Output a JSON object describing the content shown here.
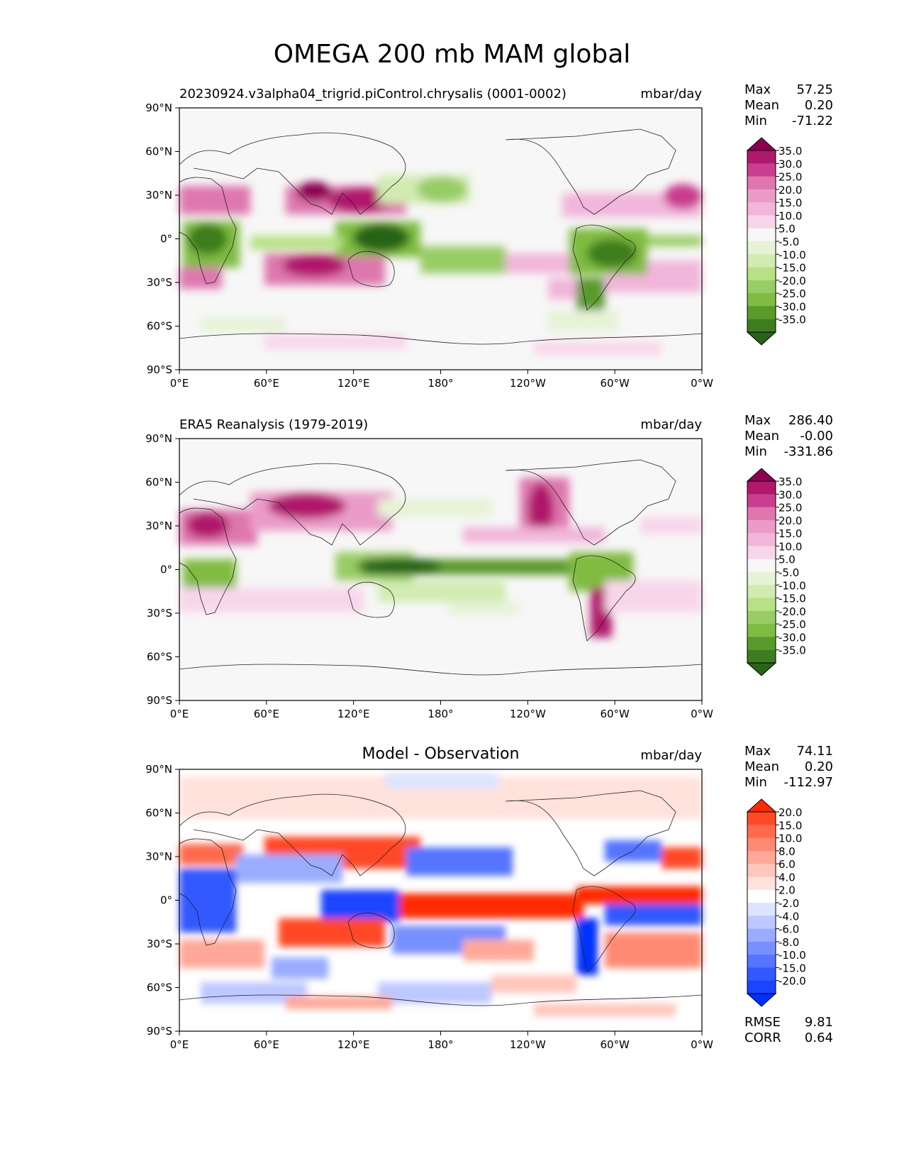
{
  "title": "OMEGA 200 mb MAM global",
  "lon_ticks": [
    "0°E",
    "60°E",
    "120°E",
    "180°",
    "120°W",
    "60°W",
    "0°W"
  ],
  "lat_ticks": [
    "90°N",
    "60°N",
    "30°N",
    "0°",
    "30°S",
    "60°S",
    "90°S"
  ],
  "panels": [
    {
      "title": "20230924.v3alpha04_trigrid.piControl.chrysalis (0001-0002)",
      "units": "mbar/day",
      "stats": [
        {
          "label": "Max",
          "value": "57.25"
        },
        {
          "label": "Mean",
          "value": "0.20"
        },
        {
          "label": "Min",
          "value": "-71.22"
        }
      ],
      "colorbar": {
        "levels": [
          "35.0",
          "30.0",
          "25.0",
          "20.0",
          "15.0",
          "10.0",
          "5.0",
          "-5.0",
          "-10.0",
          "-15.0",
          "-20.0",
          "-25.0",
          "-30.0",
          "-35.0"
        ],
        "colors": [
          "#8e0152",
          "#b0186c",
          "#c93e8f",
          "#de77ae",
          "#ea9cc8",
          "#f1b6da",
          "#f8d6ea",
          "#f7f7f7",
          "#e6f3d6",
          "#d1ebb1",
          "#b8e186",
          "#98cc65",
          "#7fbc41",
          "#5a9a2c",
          "#3d7d1f",
          "#276419"
        ]
      }
    },
    {
      "title": "ERA5 Reanalysis (1979-2019)",
      "units": "mbar/day",
      "stats": [
        {
          "label": "Max",
          "value": "286.40"
        },
        {
          "label": "Mean",
          "value": "-0.00"
        },
        {
          "label": "Min",
          "value": "-331.86"
        }
      ],
      "colorbar": {
        "levels": [
          "35.0",
          "30.0",
          "25.0",
          "20.0",
          "15.0",
          "10.0",
          "5.0",
          "-5.0",
          "-10.0",
          "-15.0",
          "-20.0",
          "-25.0",
          "-30.0",
          "-35.0"
        ],
        "colors": [
          "#8e0152",
          "#b0186c",
          "#c93e8f",
          "#de77ae",
          "#ea9cc8",
          "#f1b6da",
          "#f8d6ea",
          "#f7f7f7",
          "#e6f3d6",
          "#d1ebb1",
          "#b8e186",
          "#98cc65",
          "#7fbc41",
          "#5a9a2c",
          "#3d7d1f",
          "#276419"
        ]
      }
    },
    {
      "title": "Model - Observation",
      "units": "mbar/day",
      "stats": [
        {
          "label": "Max",
          "value": "74.11"
        },
        {
          "label": "Mean",
          "value": "0.20"
        },
        {
          "label": "Min",
          "value": "-112.97"
        }
      ],
      "extra_stats": [
        {
          "label": "RMSE",
          "value": "9.81"
        },
        {
          "label": "CORR",
          "value": "0.64"
        }
      ],
      "colorbar": {
        "levels": [
          "20.0",
          "15.0",
          "10.0",
          "8.0",
          "6.0",
          "4.0",
          "2.0",
          "-2.0",
          "-4.0",
          "-6.0",
          "-8.0",
          "-10.0",
          "-15.0",
          "-20.0"
        ],
        "colors": [
          "#ff2a00",
          "#ff4a26",
          "#ff6a4d",
          "#ff8a73",
          "#ffa899",
          "#ffc6bb",
          "#ffe2dc",
          "#ffffff",
          "#dde4ff",
          "#bcc8ff",
          "#9aacff",
          "#7890ff",
          "#5574ff",
          "#3358ff",
          "#1a44ff",
          "#0030ff"
        ]
      }
    }
  ]
}
